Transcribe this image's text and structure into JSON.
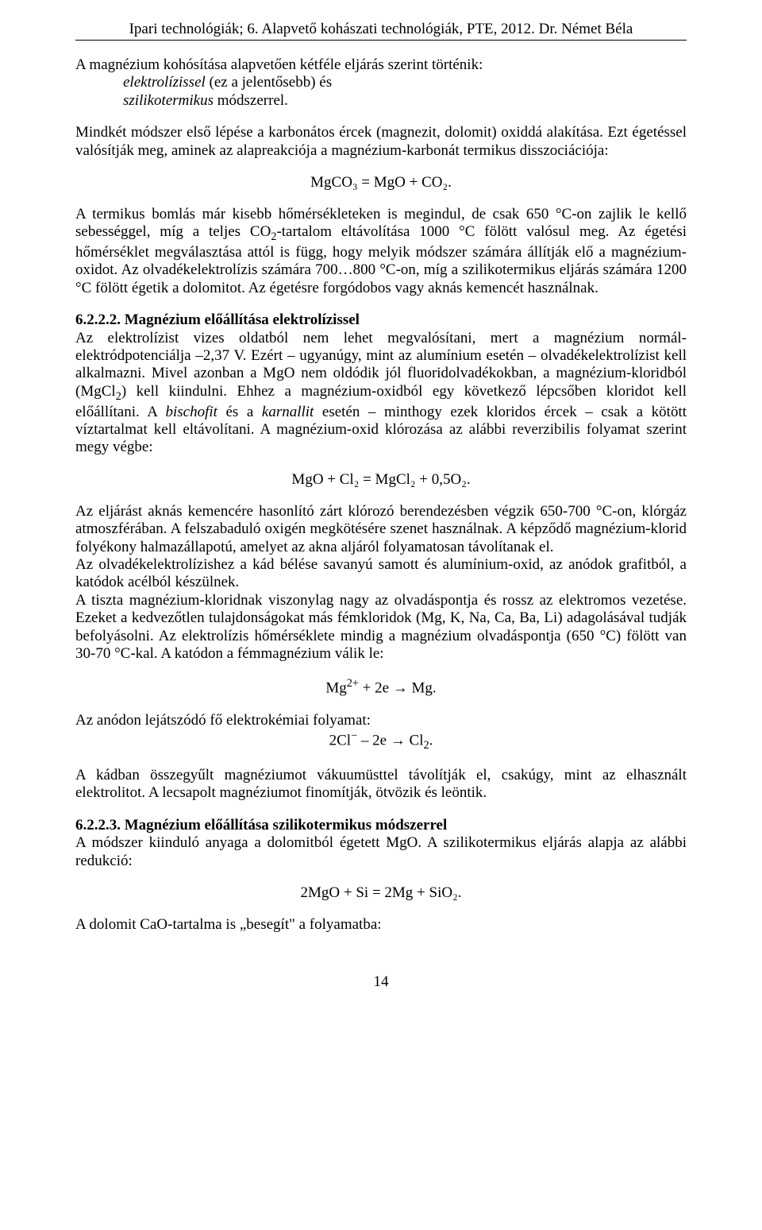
{
  "header": "Ipari technológiák; 6. Alapvető kohászati technológiák, PTE, 2012. Dr. Német Béla",
  "intro": {
    "line1": "A magnézium kohósítása alapvetően kétféle eljárás szerint történik:",
    "line2_prefix": "elektrolízissel",
    "line2_rest": " (ez a jelentősebb) és",
    "line3_prefix": "szilikotermikus",
    "line3_rest": " módszerrel."
  },
  "p1": "Mindkét módszer első lépése a karbonátos ércek (magnezit, dolomit) oxiddá alakítása. Ezt égetéssel valósítják meg, aminek az alapreakciója a magnézium-karbonát termikus disszociációja:",
  "eq1": "MgCO₃ = MgO + CO₂.",
  "p2_a": "A termikus bomlás már kisebb hőmérsékleteken is megindul, de csak 650 °C-on zajlik le kellő sebességgel, míg a teljes CO",
  "p2_b": "-tartalom eltávolítása 1000 °C fölött valósul meg. Az égetési hőmérséklet megválasztása attól is függ, hogy melyik módszer számára állítják elő a magnézium-oxidot. Az olvadékelektrolízis számára 700…800 °C-on, míg a szilikotermikus eljárás számára 1200 °C fölött égetik a dolomitot. Az égetésre forgódobos vagy aknás kemencét használnak.",
  "sec6222_title": "6.2.2.2. Magnézium előállítása elektrolízissel",
  "p3_a": "Az elektrolízist vizes oldatból nem lehet megvalósítani, mert a magnézium normál-elektródpotenciálja –2,37 V. Ezért – ugyanúgy, mint az alumínium esetén – olvadékelektrolízist kell alkalmazni. Mivel azonban a MgO nem oldódik jól fluoridolvadékokban, a magnézium-kloridból (MgCl",
  "p3_b": ") kell kiindulni. Ehhez a magnézium-oxidból egy következő lépcsőben kloridot kell előállítani. A ",
  "p3_bisch": "bischofit",
  "p3_c": " és a ",
  "p3_karn": "karnallit",
  "p3_d": " esetén – minthogy ezek kloridos ércek – csak a kötött víztartalmat kell eltávolítani. A magnézium-oxid klórozása az alábbi reverzibilis folyamat szerint megy végbe:",
  "eq2": "MgO + Cl₂ = MgCl₂ + 0,5O₂.",
  "p4": "Az eljárást aknás kemencére hasonlító zárt klórozó berendezésben végzik 650-700 °C-on, klórgáz atmoszférában. A felszabaduló oxigén megkötésére szenet használnak. A képződő magnézium-klorid folyékony halmazállapotú, amelyet az akna aljáról folyamatosan távolítanak el.",
  "p5": "Az olvadékelektrolízishez a kád bélése savanyú samott és alumínium-oxid, az anódok grafitból, a katódok acélból készülnek.",
  "p6": "A tiszta magnézium-kloridnak viszonylag nagy az olvadáspontja és rossz az elektromos vezetése. Ezeket a kedvezőtlen tulajdonságokat más fémkloridok (Mg, K, Na, Ca, Ba, Li) adagolásával tudják befolyásolni. Az elektrolízis hőmérséklete mindig a magnézium olvadáspontja (650 °C) fölött van 30-70 °C-kal. A katódon a fémmagnézium válik le:",
  "eq3_a": "Mg",
  "eq3_b": " + 2e → Mg.",
  "anode_label": "Az anódon lejátszódó fő elektrokémiai folyamat:",
  "eq4_a": "2Cl",
  "eq4_b": " – 2e → Cl",
  "eq4_c": ".",
  "p7": "A kádban összegyűlt magnéziumot vákuumüsttel távolítják el, csakúgy, mint az elhasznált elektrolitot. A lecsapolt magnéziumot finomítják, ötvözik és leöntik.",
  "sec6223_title": "6.2.2.3. Magnézium előállítása szilikotermikus módszerrel",
  "p8": "A módszer kiinduló anyaga a dolomitból égetett MgO. A szilikotermikus eljárás alapja az alábbi redukció:",
  "eq5": "2MgO + Si = 2Mg + SiO₂.",
  "p9": "A dolomit CaO-tartalma is „besegít\" a folyamatba:",
  "pagenum": "14"
}
